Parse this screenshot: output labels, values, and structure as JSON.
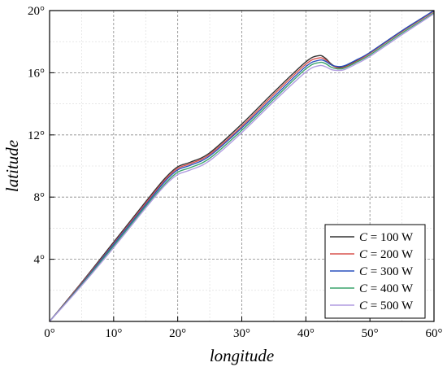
{
  "chart_data": {
    "type": "line",
    "xlabel": "longitude",
    "ylabel": "latitude",
    "xlim": [
      0,
      60
    ],
    "ylim": [
      0,
      20
    ],
    "x_ticks": [
      0,
      10,
      20,
      30,
      40,
      50,
      60
    ],
    "x_tick_labels": [
      "0°",
      "10°",
      "20°",
      "30°",
      "40°",
      "50°",
      "60°"
    ],
    "y_ticks": [
      4,
      8,
      12,
      16,
      20
    ],
    "y_tick_labels": [
      "4°",
      "8°",
      "12°",
      "16°",
      "20°"
    ],
    "grid": true,
    "legend_position": "bottom-right",
    "series": [
      {
        "name": "C = 100 W",
        "name_var": "C",
        "name_rest": " = 100 W",
        "color": "#333333",
        "points": [
          [
            0,
            0
          ],
          [
            5,
            2.5
          ],
          [
            10,
            5.1
          ],
          [
            15,
            7.7
          ],
          [
            18,
            9.2
          ],
          [
            20,
            9.95
          ],
          [
            22,
            10.25
          ],
          [
            25,
            10.85
          ],
          [
            30,
            12.7
          ],
          [
            35,
            14.75
          ],
          [
            40,
            16.7
          ],
          [
            42,
            17.1
          ],
          [
            43,
            16.95
          ],
          [
            44,
            16.55
          ],
          [
            45,
            16.35
          ],
          [
            46,
            16.4
          ],
          [
            48,
            16.8
          ],
          [
            50,
            17.3
          ],
          [
            55,
            18.7
          ],
          [
            60,
            20.0
          ]
        ]
      },
      {
        "name": "C = 200 W",
        "name_var": "C",
        "name_rest": " = 200 W",
        "color": "#d9534f",
        "points": [
          [
            0,
            0
          ],
          [
            5,
            2.45
          ],
          [
            10,
            5.0
          ],
          [
            15,
            7.6
          ],
          [
            18,
            9.1
          ],
          [
            20,
            9.85
          ],
          [
            22,
            10.15
          ],
          [
            25,
            10.75
          ],
          [
            30,
            12.55
          ],
          [
            35,
            14.6
          ],
          [
            40,
            16.55
          ],
          [
            42,
            16.95
          ],
          [
            43,
            16.85
          ],
          [
            44,
            16.5
          ],
          [
            45,
            16.3
          ],
          [
            46,
            16.35
          ],
          [
            48,
            16.75
          ],
          [
            50,
            17.25
          ],
          [
            55,
            18.65
          ],
          [
            60,
            19.95
          ]
        ]
      },
      {
        "name": "C = 300 W",
        "name_var": "C",
        "name_rest": " = 300 W",
        "color": "#2a52be",
        "points": [
          [
            0,
            0
          ],
          [
            5,
            2.4
          ],
          [
            10,
            4.95
          ],
          [
            15,
            7.5
          ],
          [
            18,
            9.0
          ],
          [
            20,
            9.75
          ],
          [
            22,
            10.05
          ],
          [
            25,
            10.65
          ],
          [
            30,
            12.45
          ],
          [
            35,
            14.45
          ],
          [
            40,
            16.4
          ],
          [
            42,
            16.8
          ],
          [
            43,
            16.75
          ],
          [
            44,
            16.5
          ],
          [
            45,
            16.4
          ],
          [
            46,
            16.45
          ],
          [
            48,
            16.85
          ],
          [
            50,
            17.3
          ],
          [
            55,
            18.7
          ],
          [
            60,
            20.0
          ]
        ]
      },
      {
        "name": "C = 400 W",
        "name_var": "C",
        "name_rest": " = 400 W",
        "color": "#3aa36b",
        "points": [
          [
            0,
            0
          ],
          [
            5,
            2.35
          ],
          [
            10,
            4.85
          ],
          [
            15,
            7.4
          ],
          [
            18,
            8.85
          ],
          [
            20,
            9.6
          ],
          [
            22,
            9.9
          ],
          [
            25,
            10.5
          ],
          [
            30,
            12.3
          ],
          [
            35,
            14.3
          ],
          [
            40,
            16.25
          ],
          [
            42,
            16.65
          ],
          [
            43,
            16.6
          ],
          [
            44,
            16.35
          ],
          [
            45,
            16.25
          ],
          [
            46,
            16.3
          ],
          [
            48,
            16.7
          ],
          [
            50,
            17.15
          ],
          [
            55,
            18.55
          ],
          [
            60,
            19.85
          ]
        ]
      },
      {
        "name": "C = 500 W",
        "name_var": "C",
        "name_rest": " = 500 W",
        "color": "#b09be0",
        "points": [
          [
            0,
            0
          ],
          [
            5,
            2.3
          ],
          [
            10,
            4.75
          ],
          [
            15,
            7.3
          ],
          [
            18,
            8.75
          ],
          [
            20,
            9.45
          ],
          [
            22,
            9.75
          ],
          [
            25,
            10.35
          ],
          [
            30,
            12.15
          ],
          [
            35,
            14.15
          ],
          [
            40,
            16.05
          ],
          [
            42,
            16.45
          ],
          [
            43,
            16.4
          ],
          [
            44,
            16.2
          ],
          [
            45,
            16.15
          ],
          [
            46,
            16.2
          ],
          [
            48,
            16.6
          ],
          [
            50,
            17.05
          ],
          [
            55,
            18.45
          ],
          [
            60,
            19.8
          ]
        ]
      }
    ]
  }
}
